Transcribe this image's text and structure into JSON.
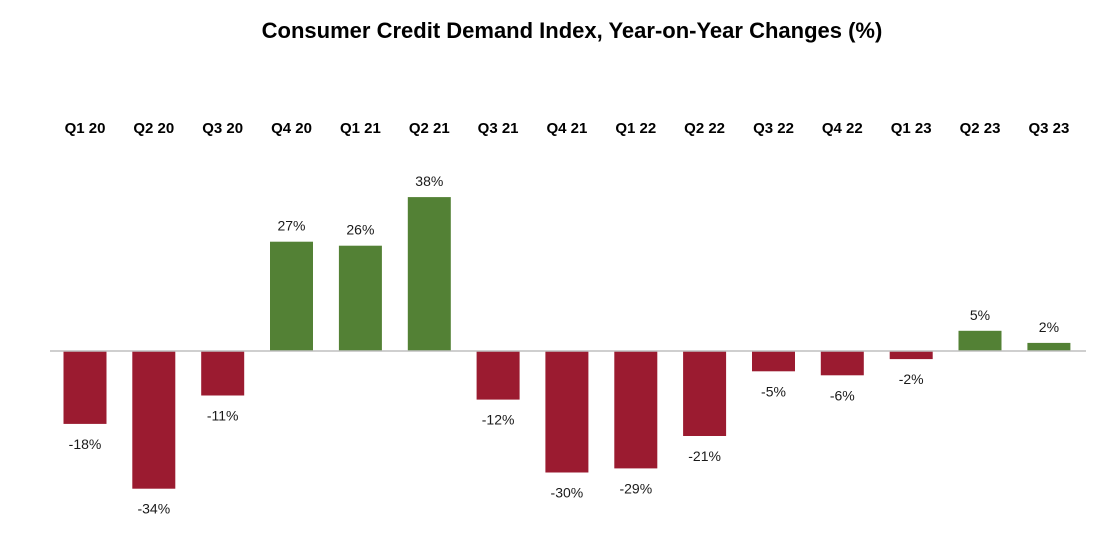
{
  "chart_data": {
    "type": "bar",
    "title": "Consumer Credit Demand Index, Year-on-Year Changes (%)",
    "categories": [
      "Q1 20",
      "Q2 20",
      "Q3 20",
      "Q4 20",
      "Q1 21",
      "Q2 21",
      "Q3 21",
      "Q4 21",
      "Q1 22",
      "Q2 22",
      "Q3 22",
      "Q4 22",
      "Q1 23",
      "Q2 23",
      "Q3 23"
    ],
    "values": [
      -18,
      -34,
      -11,
      27,
      26,
      38,
      -12,
      -30,
      -29,
      -21,
      -5,
      -6,
      -2,
      5,
      2
    ],
    "data_labels": [
      "-18%",
      "-34%",
      "-11%",
      "27%",
      "26%",
      "38%",
      "-12%",
      "-30%",
      "-29%",
      "-21%",
      "-5%",
      "-6%",
      "-2%",
      "5%",
      "2%"
    ],
    "xlabel": "",
    "ylabel": "",
    "ylim": [
      -34,
      38
    ],
    "category_axis_position": "top",
    "grid": false,
    "legend": "none",
    "colors": {
      "positive": "#538135",
      "negative": "#9b1b30",
      "axis": "#bfbfbf"
    }
  }
}
